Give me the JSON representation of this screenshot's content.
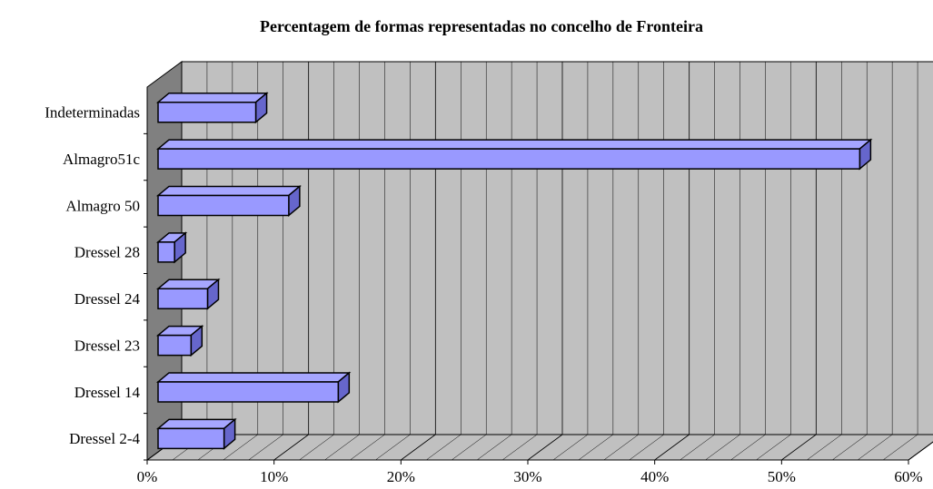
{
  "chart_data": {
    "type": "bar3d",
    "title": "Percentagem de formas representadas no concelho de Fronteira",
    "categories": [
      "Dressel 2-4",
      "Dressel 14",
      "Dressel 23",
      "Dressel 24",
      "Dressel 28",
      "Almagro 50",
      "Almagro51c",
      "Indeterminadas"
    ],
    "values": [
      5.2,
      14.2,
      2.6,
      3.9,
      1.3,
      10.3,
      55.3,
      7.7
    ],
    "color": "#9999ff",
    "xlim": [
      0,
      60
    ],
    "xticks": [
      {
        "value": 0,
        "label": "0%"
      },
      {
        "value": 10,
        "label": "10%"
      },
      {
        "value": 20,
        "label": "20%"
      },
      {
        "value": 30,
        "label": "30%"
      },
      {
        "value": 40,
        "label": "40%"
      },
      {
        "value": 50,
        "label": "50%"
      },
      {
        "value": 60,
        "label": "60%"
      }
    ],
    "grid": true
  }
}
